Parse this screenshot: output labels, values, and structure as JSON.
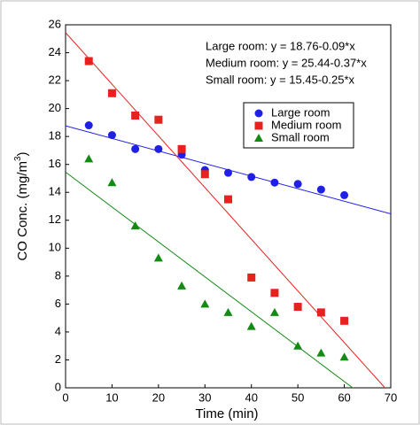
{
  "chart_data": {
    "type": "scatter",
    "x": [
      5,
      10,
      15,
      20,
      25,
      30,
      35,
      40,
      45,
      50,
      55,
      60
    ],
    "series": [
      {
        "name": "Large room",
        "color": "#1f1fe6",
        "marker": "circle",
        "values": [
          18.8,
          18.1,
          17.1,
          17.1,
          16.7,
          15.6,
          15.4,
          15.1,
          14.7,
          14.6,
          14.2,
          13.8
        ],
        "fit": {
          "intercept": 18.76,
          "slope": -0.09
        }
      },
      {
        "name": "Medium room",
        "color": "#e8201e",
        "marker": "square",
        "values": [
          23.4,
          21.1,
          19.5,
          19.2,
          17.1,
          15.3,
          13.5,
          7.9,
          6.8,
          5.8,
          5.4,
          4.8
        ],
        "fit": {
          "intercept": 25.44,
          "slope": -0.37
        }
      },
      {
        "name": "Small room",
        "color": "#138a13",
        "marker": "triangle",
        "values": [
          16.4,
          14.7,
          11.6,
          9.3,
          7.3,
          6.0,
          5.4,
          4.4,
          5.4,
          3.0,
          2.5,
          2.2
        ],
        "fit": {
          "intercept": 15.45,
          "slope": -0.25
        }
      }
    ],
    "annotations": [
      "Large room: y = 18.76-0.09*x",
      "Medium room: y = 25.44-0.37*x",
      "Small room: y = 15.45-0.25*x"
    ],
    "xlabel": "Time (min)",
    "ylabel": [
      "CO Conc. (mg/m",
      "3",
      ")"
    ],
    "xlim": [
      0,
      70
    ],
    "xticks": [
      0,
      10,
      20,
      30,
      40,
      50,
      60,
      70
    ],
    "ylim": [
      0,
      26
    ],
    "yticks": [
      0,
      2,
      4,
      6,
      8,
      10,
      12,
      14,
      16,
      18,
      20,
      22,
      24,
      26
    ],
    "grid": false
  }
}
